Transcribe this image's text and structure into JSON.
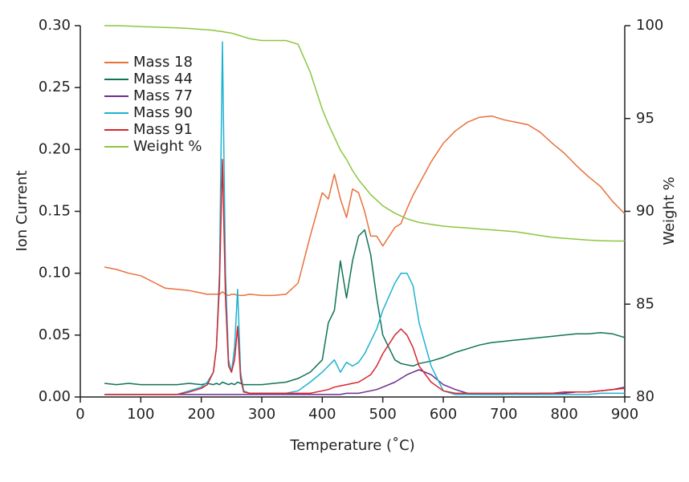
{
  "chart_data": {
    "type": "line",
    "xlabel": "Temperature (˚C)",
    "ylabel": "Ion Current",
    "y2label": "Weight %",
    "x": [
      40,
      60,
      80,
      100,
      120,
      140,
      160,
      180,
      200,
      210,
      220,
      225,
      230,
      235,
      240,
      245,
      250,
      255,
      260,
      265,
      270,
      280,
      300,
      320,
      340,
      360,
      380,
      400,
      410,
      420,
      430,
      440,
      450,
      460,
      470,
      480,
      490,
      500,
      520,
      530,
      540,
      550,
      560,
      580,
      600,
      620,
      640,
      660,
      680,
      700,
      720,
      740,
      760,
      780,
      800,
      820,
      840,
      860,
      880,
      900
    ],
    "xlim": [
      0,
      900
    ],
    "xticks": [
      0,
      100,
      200,
      300,
      400,
      500,
      600,
      700,
      800,
      900
    ],
    "ylim": [
      0,
      0.3
    ],
    "yticks": [
      {
        "value": 0,
        "label": "0.00"
      },
      {
        "value": 0.05,
        "label": "0.05"
      },
      {
        "value": 0.1,
        "label": "0.10"
      },
      {
        "value": 0.15,
        "label": "0.15"
      },
      {
        "value": 0.2,
        "label": "0.20"
      },
      {
        "value": 0.25,
        "label": "0.25"
      },
      {
        "value": 0.3,
        "label": "0.30"
      }
    ],
    "y2lim": [
      80,
      100
    ],
    "y2ticks": [
      80,
      85,
      90,
      95,
      100
    ],
    "legend": "upper left",
    "grid": false,
    "series": [
      {
        "name": "Mass 18",
        "color": "#e8703a",
        "values": [
          0.105,
          0.103,
          0.1,
          0.098,
          0.093,
          0.088,
          0.087,
          0.086,
          0.084,
          0.083,
          0.083,
          0.083,
          0.083,
          0.085,
          0.083,
          0.082,
          0.083,
          0.083,
          0.082,
          0.082,
          0.082,
          0.083,
          0.082,
          0.082,
          0.083,
          0.092,
          0.13,
          0.165,
          0.16,
          0.18,
          0.16,
          0.145,
          0.168,
          0.165,
          0.15,
          0.13,
          0.13,
          0.122,
          0.137,
          0.14,
          0.152,
          0.163,
          0.172,
          0.19,
          0.205,
          0.215,
          0.222,
          0.226,
          0.227,
          0.224,
          0.222,
          0.22,
          0.214,
          0.205,
          0.197,
          0.187,
          0.178,
          0.17,
          0.158,
          0.148
        ]
      },
      {
        "name": "Mass 44",
        "color": "#0f7455",
        "values": [
          0.011,
          0.01,
          0.011,
          0.01,
          0.01,
          0.01,
          0.01,
          0.011,
          0.01,
          0.011,
          0.01,
          0.011,
          0.01,
          0.012,
          0.011,
          0.01,
          0.011,
          0.01,
          0.012,
          0.011,
          0.01,
          0.01,
          0.01,
          0.011,
          0.012,
          0.015,
          0.02,
          0.03,
          0.06,
          0.07,
          0.11,
          0.08,
          0.11,
          0.13,
          0.135,
          0.115,
          0.08,
          0.05,
          0.03,
          0.027,
          0.026,
          0.025,
          0.027,
          0.029,
          0.032,
          0.036,
          0.039,
          0.042,
          0.044,
          0.045,
          0.046,
          0.047,
          0.048,
          0.049,
          0.05,
          0.051,
          0.051,
          0.052,
          0.051,
          0.048
        ]
      },
      {
        "name": "Mass 77",
        "color": "#6a2c91",
        "values": [
          0.002,
          0.002,
          0.002,
          0.002,
          0.002,
          0.002,
          0.002,
          0.002,
          0.002,
          0.002,
          0.002,
          0.002,
          0.002,
          0.002,
          0.002,
          0.002,
          0.002,
          0.002,
          0.002,
          0.002,
          0.002,
          0.002,
          0.002,
          0.002,
          0.002,
          0.002,
          0.002,
          0.002,
          0.002,
          0.002,
          0.002,
          0.003,
          0.003,
          0.003,
          0.004,
          0.005,
          0.006,
          0.008,
          0.012,
          0.015,
          0.018,
          0.02,
          0.022,
          0.018,
          0.01,
          0.006,
          0.003,
          0.002,
          0.002,
          0.002,
          0.003,
          0.002,
          0.003,
          0.003,
          0.003,
          0.004,
          0.004,
          0.005,
          0.006,
          0.008
        ]
      },
      {
        "name": "Mass 90",
        "color": "#1eb2d0",
        "values": [
          0.002,
          0.002,
          0.002,
          0.002,
          0.002,
          0.002,
          0.002,
          0.005,
          0.008,
          0.012,
          0.02,
          0.04,
          0.1,
          0.287,
          0.1,
          0.03,
          0.02,
          0.04,
          0.087,
          0.02,
          0.005,
          0.003,
          0.003,
          0.003,
          0.003,
          0.005,
          0.012,
          0.02,
          0.025,
          0.03,
          0.02,
          0.028,
          0.025,
          0.028,
          0.035,
          0.045,
          0.055,
          0.07,
          0.092,
          0.1,
          0.1,
          0.09,
          0.06,
          0.025,
          0.005,
          0.002,
          0.002,
          0.002,
          0.002,
          0.002,
          0.002,
          0.002,
          0.002,
          0.002,
          0.002,
          0.002,
          0.002,
          0.003,
          0.003,
          0.003
        ]
      },
      {
        "name": "Mass 91",
        "color": "#d7262e",
        "values": [
          0.002,
          0.002,
          0.002,
          0.002,
          0.002,
          0.002,
          0.002,
          0.004,
          0.007,
          0.01,
          0.02,
          0.04,
          0.09,
          0.192,
          0.08,
          0.025,
          0.02,
          0.03,
          0.057,
          0.015,
          0.004,
          0.003,
          0.003,
          0.003,
          0.003,
          0.003,
          0.003,
          0.005,
          0.006,
          0.008,
          0.009,
          0.01,
          0.011,
          0.012,
          0.015,
          0.018,
          0.025,
          0.035,
          0.05,
          0.055,
          0.05,
          0.04,
          0.025,
          0.012,
          0.005,
          0.003,
          0.003,
          0.003,
          0.003,
          0.003,
          0.003,
          0.003,
          0.003,
          0.003,
          0.004,
          0.004,
          0.004,
          0.005,
          0.006,
          0.007
        ]
      },
      {
        "name": "Weight %",
        "color": "#8cc63f",
        "axis": "y2",
        "values": [
          100,
          100,
          99.98,
          99.95,
          99.93,
          99.9,
          99.88,
          99.85,
          99.8,
          99.78,
          99.75,
          99.72,
          99.7,
          99.68,
          99.65,
          99.62,
          99.6,
          99.55,
          99.5,
          99.45,
          99.4,
          99.3,
          99.2,
          99.2,
          99.2,
          99.0,
          97.5,
          95.5,
          94.7,
          94.0,
          93.3,
          92.8,
          92.2,
          91.7,
          91.3,
          90.9,
          90.6,
          90.3,
          89.9,
          89.75,
          89.6,
          89.5,
          89.4,
          89.3,
          89.2,
          89.15,
          89.1,
          89.05,
          89.0,
          88.95,
          88.9,
          88.8,
          88.7,
          88.6,
          88.55,
          88.5,
          88.45,
          88.42,
          88.4,
          88.4
        ]
      }
    ]
  }
}
